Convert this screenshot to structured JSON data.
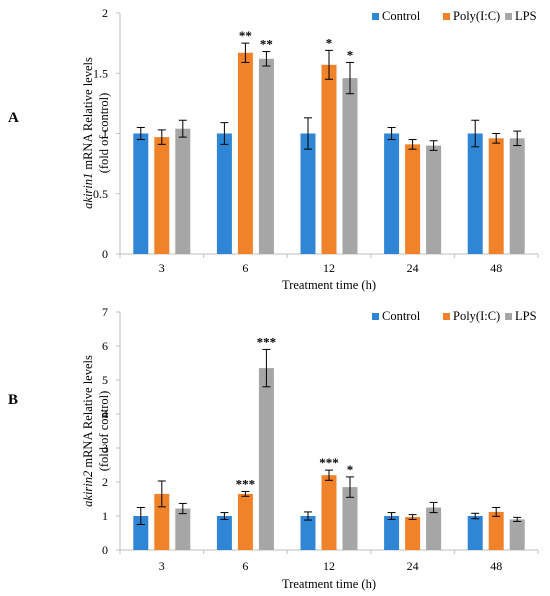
{
  "colors": {
    "control": "#2e86d4",
    "polyic": "#f0822a",
    "lps": "#a6a6a6",
    "axis": "#bfbfbf"
  },
  "chart_data": [
    {
      "panel_label": "A",
      "type": "bar",
      "categories": [
        "3",
        "6",
        "12",
        "24",
        "48"
      ],
      "xlabel": "Treatment time (h)",
      "ylabel_italic": "akirin1",
      "ylabel_rest": " mRNA Relative levels",
      "ylabel_line2": "(fold of control)",
      "ylim": [
        0,
        2
      ],
      "yticks": [
        "0",
        "0.5",
        "1",
        "1.5",
        "2"
      ],
      "legend_position": "top-right",
      "series": [
        {
          "name": "Control",
          "color_key": "control",
          "values": [
            1.0,
            1.0,
            1.0,
            1.0,
            1.0
          ],
          "errors": [
            0.05,
            0.09,
            0.13,
            0.05,
            0.11
          ],
          "sig": [
            "",
            "",
            "",
            "",
            ""
          ]
        },
        {
          "name": "Poly(I:C)",
          "color_key": "polyic",
          "values": [
            0.97,
            1.67,
            1.57,
            0.91,
            0.96
          ],
          "errors": [
            0.06,
            0.08,
            0.12,
            0.04,
            0.04
          ],
          "sig": [
            "",
            "**",
            "*",
            "",
            ""
          ]
        },
        {
          "name": "LPS",
          "color_key": "lps",
          "values": [
            1.04,
            1.62,
            1.46,
            0.9,
            0.96
          ],
          "errors": [
            0.07,
            0.06,
            0.13,
            0.04,
            0.06
          ],
          "sig": [
            "",
            "**",
            "*",
            "",
            ""
          ]
        }
      ]
    },
    {
      "panel_label": "B",
      "type": "bar",
      "categories": [
        "3",
        "6",
        "12",
        "24",
        "48"
      ],
      "xlabel": "Treatment time (h)",
      "ylabel_italic": "akirin2",
      "ylabel_rest": " mRNA Relative levels",
      "ylabel_line2": "(fold of control)",
      "ylim": [
        0,
        7
      ],
      "yticks": [
        "0",
        "1",
        "2",
        "3",
        "4",
        "5",
        "6",
        "7"
      ],
      "legend_position": "top-right",
      "series": [
        {
          "name": "Control",
          "color_key": "control",
          "values": [
            1.0,
            1.0,
            1.0,
            1.0,
            1.0
          ],
          "errors": [
            0.25,
            0.1,
            0.12,
            0.1,
            0.08
          ],
          "sig": [
            "",
            "",
            "",
            "",
            ""
          ]
        },
        {
          "name": "Poly(I:C)",
          "color_key": "polyic",
          "values": [
            1.65,
            1.65,
            2.2,
            0.97,
            1.12
          ],
          "errors": [
            0.38,
            0.07,
            0.15,
            0.07,
            0.13
          ],
          "sig": [
            "",
            "***",
            "***",
            "",
            ""
          ]
        },
        {
          "name": "LPS",
          "color_key": "lps",
          "values": [
            1.22,
            5.35,
            1.85,
            1.25,
            0.9
          ],
          "errors": [
            0.15,
            0.55,
            0.3,
            0.15,
            0.06
          ],
          "sig": [
            "",
            "***",
            "*",
            "",
            ""
          ]
        }
      ]
    }
  ]
}
